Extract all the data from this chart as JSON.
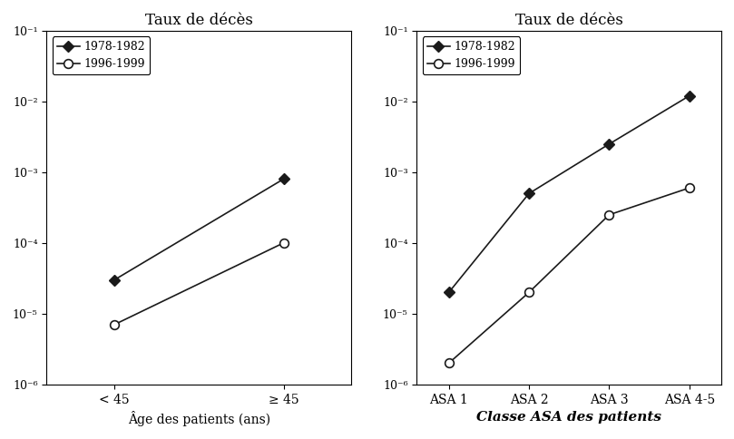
{
  "left": {
    "title": "Taux de décès",
    "xlabel": "Âge des patients (ans)",
    "xtick_labels": [
      "< 45",
      "≥ 45"
    ],
    "series_1978": [
      3e-05,
      0.0008
    ],
    "series_1996": [
      7e-06,
      0.0001
    ],
    "ylim": [
      1e-06,
      0.1
    ],
    "yticks": [
      1e-06,
      1e-05,
      0.0001,
      0.001,
      0.01,
      0.1
    ],
    "ytick_labels": [
      "10⁻⁶",
      "10⁻⁵",
      "10⁻⁴",
      "10⁻³",
      "10⁻²",
      "10⁻¹"
    ]
  },
  "right": {
    "title": "Taux de décès",
    "xlabel": "Classe ASA des patients",
    "xtick_labels": [
      "ASA 1",
      "ASA 2",
      "ASA 3",
      "ASA 4-5"
    ],
    "series_1978": [
      2e-05,
      0.0005,
      0.0025,
      0.012
    ],
    "series_1996": [
      2e-06,
      2e-05,
      0.00025,
      0.0006
    ],
    "ylim": [
      1e-06,
      0.1
    ],
    "yticks": [
      1e-06,
      1e-05,
      0.0001,
      0.001,
      0.01,
      0.1
    ],
    "ytick_labels": [
      "10⁻⁶",
      "10⁻⁵",
      "10⁻⁴",
      "10⁻³",
      "10⁻²",
      "10⁻¹"
    ]
  },
  "legend_labels": [
    "1978-1982",
    "1996-1999"
  ],
  "line_color": "#1a1a1a",
  "background_color": "#ffffff",
  "figsize": [
    8.09,
    4.84
  ],
  "dpi": 100
}
